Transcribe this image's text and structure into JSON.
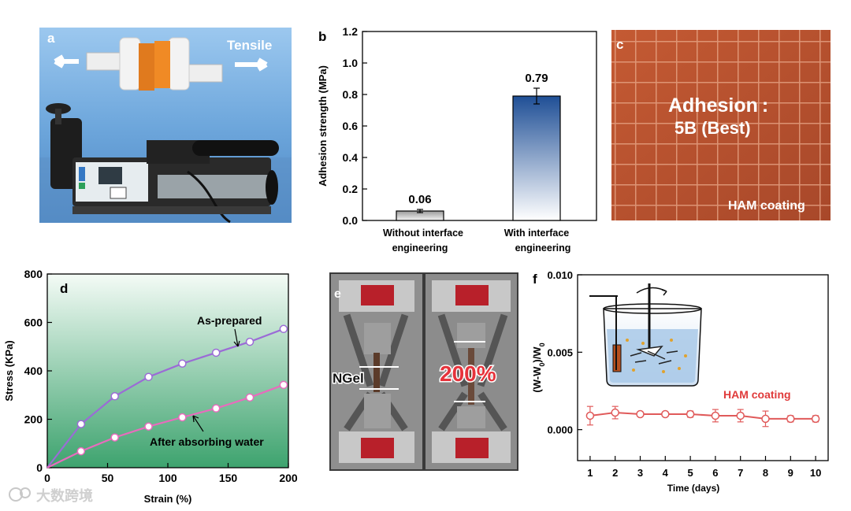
{
  "panels": {
    "a": {
      "label": "a",
      "tensile_label": "Tensile"
    },
    "b": {
      "label": "b"
    },
    "c": {
      "label": "c",
      "title_line1": "Adhesion :",
      "title_line2": "5B (Best)",
      "caption": "HAM coating"
    },
    "d": {
      "label": "d",
      "annot_top": "As-prepared",
      "annot_bottom": "After absorbing water"
    },
    "e": {
      "label": "e",
      "left_label": "NGel",
      "right_label": "200%"
    },
    "f": {
      "label": "f",
      "annot": "HAM coating"
    }
  },
  "watermark": "大数跨境",
  "colors": {
    "bar_without": "#d9d9d9",
    "bar_with": "#2a5fa8",
    "series_as_prepared": "#9b6bd6",
    "series_after_water": "#e86bbd",
    "series_ham": "#e05a5a",
    "coating_bg": "#b8502e"
  },
  "chart_data": [
    {
      "panel": "b",
      "type": "bar",
      "categories": [
        "Without interface engineering",
        "With interface engineering"
      ],
      "values": [
        0.06,
        0.79
      ],
      "errors": [
        0.01,
        0.05
      ],
      "data_labels": [
        "0.06",
        "0.79"
      ],
      "xlabel": "",
      "ylabel": "Adhesion strength (MPa)",
      "ylim": [
        0,
        1.2
      ],
      "yticks": [
        0,
        0.2,
        0.4,
        0.6,
        0.8,
        1.0,
        1.2
      ],
      "ytick_labels": [
        "0.0",
        "0.2",
        "0.4",
        "0.6",
        "0.8",
        "1.0",
        "1.2"
      ]
    },
    {
      "panel": "d",
      "type": "line",
      "xlabel": "Strain (%)",
      "ylabel": "Stress (KPa)",
      "xlim": [
        0,
        200
      ],
      "ylim": [
        0,
        800
      ],
      "xticks": [
        0,
        50,
        100,
        150,
        200
      ],
      "yticks": [
        0,
        200,
        400,
        600,
        800
      ],
      "series": [
        {
          "x": [
            0,
            28,
            56,
            84,
            112,
            140,
            168,
            196
          ],
          "y": [
            0,
            180,
            295,
            375,
            430,
            475,
            520,
            573
          ]
        },
        {
          "x": [
            0,
            28,
            56,
            84,
            112,
            140,
            168,
            196
          ],
          "y": [
            0,
            68,
            125,
            170,
            208,
            245,
            290,
            342
          ]
        }
      ]
    },
    {
      "panel": "f",
      "type": "line",
      "xlabel": "Time (days)",
      "ylabel": "(W-W0)/W0",
      "ylabel_main": "(W-W",
      "ylabel_sub": "0",
      "ylabel_mid": ")/W",
      "ylabel_sub2": "0",
      "xlim": [
        0.5,
        10.5
      ],
      "ylim": [
        -0.002,
        0.01
      ],
      "xticks": [
        1,
        2,
        3,
        4,
        5,
        6,
        7,
        8,
        9,
        10
      ],
      "yticks": [
        0,
        0.005,
        0.01
      ],
      "ytick_labels": [
        "0.000",
        "0.005",
        "0.010"
      ],
      "series": [
        {
          "x": [
            1,
            2,
            3,
            4,
            5,
            6,
            7,
            8,
            9,
            10
          ],
          "y": [
            0.0009,
            0.0011,
            0.001,
            0.001,
            0.001,
            0.0009,
            0.0009,
            0.0007,
            0.0007,
            0.0007
          ],
          "err": [
            0.0006,
            0.0004,
            0.0001,
            0.0001,
            0.0002,
            0.0004,
            0.0004,
            0.0005,
            0.0002,
            0.0002
          ]
        }
      ]
    }
  ]
}
